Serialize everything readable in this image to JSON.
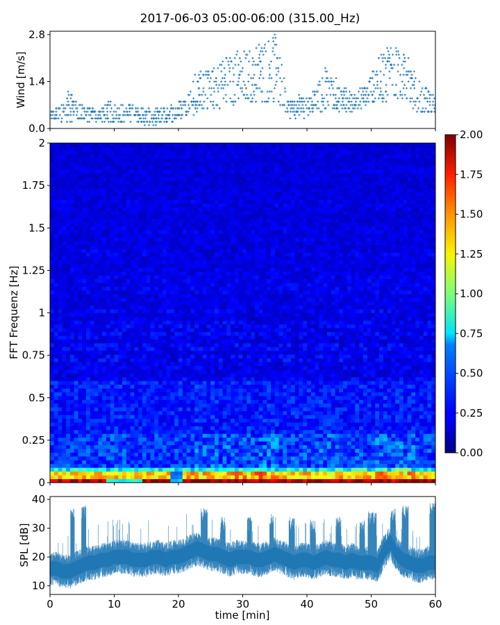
{
  "chart_data": [
    {
      "type": "scatter",
      "title": "2017-06-03 05:00-06:00 (315.00_Hz)",
      "ylabel": "Wind [m/s]",
      "ylim": [
        0,
        2.9
      ],
      "xlim": [
        0,
        60
      ],
      "yticks": [
        0.0,
        1.4,
        2.8
      ],
      "ytick_labels": [
        "0.0",
        "1.4",
        "2.8"
      ],
      "marker": "+",
      "color": "#1f77b4",
      "envelope": {
        "x": [
          0,
          2,
          3,
          5,
          7,
          9,
          11,
          13,
          15,
          17,
          19,
          21,
          23,
          25,
          27,
          29,
          31,
          33,
          35,
          36,
          37,
          39,
          41,
          43,
          45,
          47,
          49,
          51,
          53,
          55,
          57,
          59,
          60
        ],
        "min": [
          0.2,
          0.2,
          0.2,
          0.2,
          0.2,
          0.2,
          0.2,
          0.2,
          0.1,
          0.1,
          0.2,
          0.4,
          0.4,
          0.6,
          0.6,
          0.7,
          0.8,
          0.7,
          0.8,
          0.5,
          0.3,
          0.3,
          0.4,
          0.6,
          0.5,
          0.5,
          0.6,
          0.8,
          0.8,
          0.9,
          0.4,
          0.4,
          0.4
        ],
        "max": [
          0.5,
          0.8,
          1.2,
          0.7,
          0.6,
          0.8,
          0.7,
          0.7,
          0.6,
          0.6,
          0.7,
          0.9,
          1.8,
          1.7,
          2.2,
          2.3,
          2.4,
          2.7,
          2.8,
          1.9,
          0.9,
          1.0,
          1.2,
          1.9,
          1.3,
          1.1,
          1.3,
          2.1,
          2.6,
          2.6,
          1.5,
          1.1,
          0.9
        ]
      }
    },
    {
      "type": "heatmap",
      "ylabel": "FFT Frequenz [Hz]",
      "xlim": [
        0,
        60
      ],
      "ylim": [
        0,
        2
      ],
      "yticks": [
        0,
        0.25,
        0.5,
        0.75,
        1,
        1.25,
        1.5,
        1.75,
        2
      ],
      "ytick_labels": [
        "0",
        "0.25",
        "0.5",
        "0.75",
        "1",
        "1.25",
        "1.5",
        "1.75",
        "2"
      ],
      "colormap": "jet",
      "clim": [
        0,
        2
      ],
      "colorbar_ticks": [
        "0.00",
        "0.25",
        "0.50",
        "0.75",
        "1.00",
        "1.25",
        "1.50",
        "1.75",
        "2.00"
      ],
      "seed": 7
    },
    {
      "type": "line",
      "ylabel": "SPL [dB]",
      "xlabel": "time [min]",
      "xlim": [
        0,
        60
      ],
      "ylim": [
        7,
        41
      ],
      "xticks": [
        0,
        10,
        20,
        30,
        40,
        50,
        60
      ],
      "xtick_labels": [
        "0",
        "10",
        "20",
        "30",
        "40",
        "50",
        "60"
      ],
      "yticks": [
        10,
        20,
        30,
        40
      ],
      "ytick_labels": [
        "10",
        "20",
        "30",
        "40"
      ],
      "color": "#1f77b4",
      "baseline": {
        "x": [
          0,
          1,
          2,
          3,
          4,
          5,
          6,
          7,
          8,
          9,
          10,
          11,
          12,
          13,
          14,
          15,
          16,
          17,
          18,
          19,
          20,
          21,
          22,
          23,
          24,
          25,
          26,
          27,
          28,
          29,
          30,
          31,
          32,
          33,
          34,
          35,
          36,
          37,
          38,
          39,
          40,
          41,
          42,
          43,
          44,
          45,
          46,
          47,
          48,
          49,
          50,
          51,
          52,
          53,
          54,
          55,
          56,
          57,
          58,
          59,
          60
        ],
        "y": [
          16,
          16,
          15,
          15,
          16,
          17,
          18,
          18,
          19,
          19,
          20,
          20,
          20,
          19,
          19,
          19,
          20,
          20,
          19,
          20,
          20,
          21,
          22,
          23,
          22,
          21,
          21,
          20,
          19,
          20,
          20,
          20,
          19,
          19,
          20,
          21,
          20,
          19,
          18,
          19,
          19,
          18,
          19,
          20,
          19,
          19,
          18,
          19,
          18,
          18,
          18,
          17,
          22,
          25,
          21,
          19,
          18,
          17,
          17,
          18,
          18
        ]
      },
      "bursts": [
        {
          "start": 3.2,
          "end": 3.8,
          "level": 34
        },
        {
          "start": 4.9,
          "end": 5.6,
          "level": 35
        },
        {
          "start": 23.5,
          "end": 24.5,
          "level": 34
        },
        {
          "start": 26.5,
          "end": 27.3,
          "level": 31
        },
        {
          "start": 30.7,
          "end": 31.4,
          "level": 31
        },
        {
          "start": 34.2,
          "end": 34.8,
          "level": 32
        },
        {
          "start": 37.2,
          "end": 38.1,
          "level": 31
        },
        {
          "start": 40.5,
          "end": 41.3,
          "level": 30
        },
        {
          "start": 44.5,
          "end": 45.3,
          "level": 31
        },
        {
          "start": 48.2,
          "end": 49.0,
          "level": 30
        },
        {
          "start": 49.5,
          "end": 50.8,
          "level": 33
        },
        {
          "start": 53.0,
          "end": 53.8,
          "level": 34
        },
        {
          "start": 54.8,
          "end": 55.8,
          "level": 35
        },
        {
          "start": 59.1,
          "end": 60.0,
          "level": 36
        }
      ]
    }
  ]
}
